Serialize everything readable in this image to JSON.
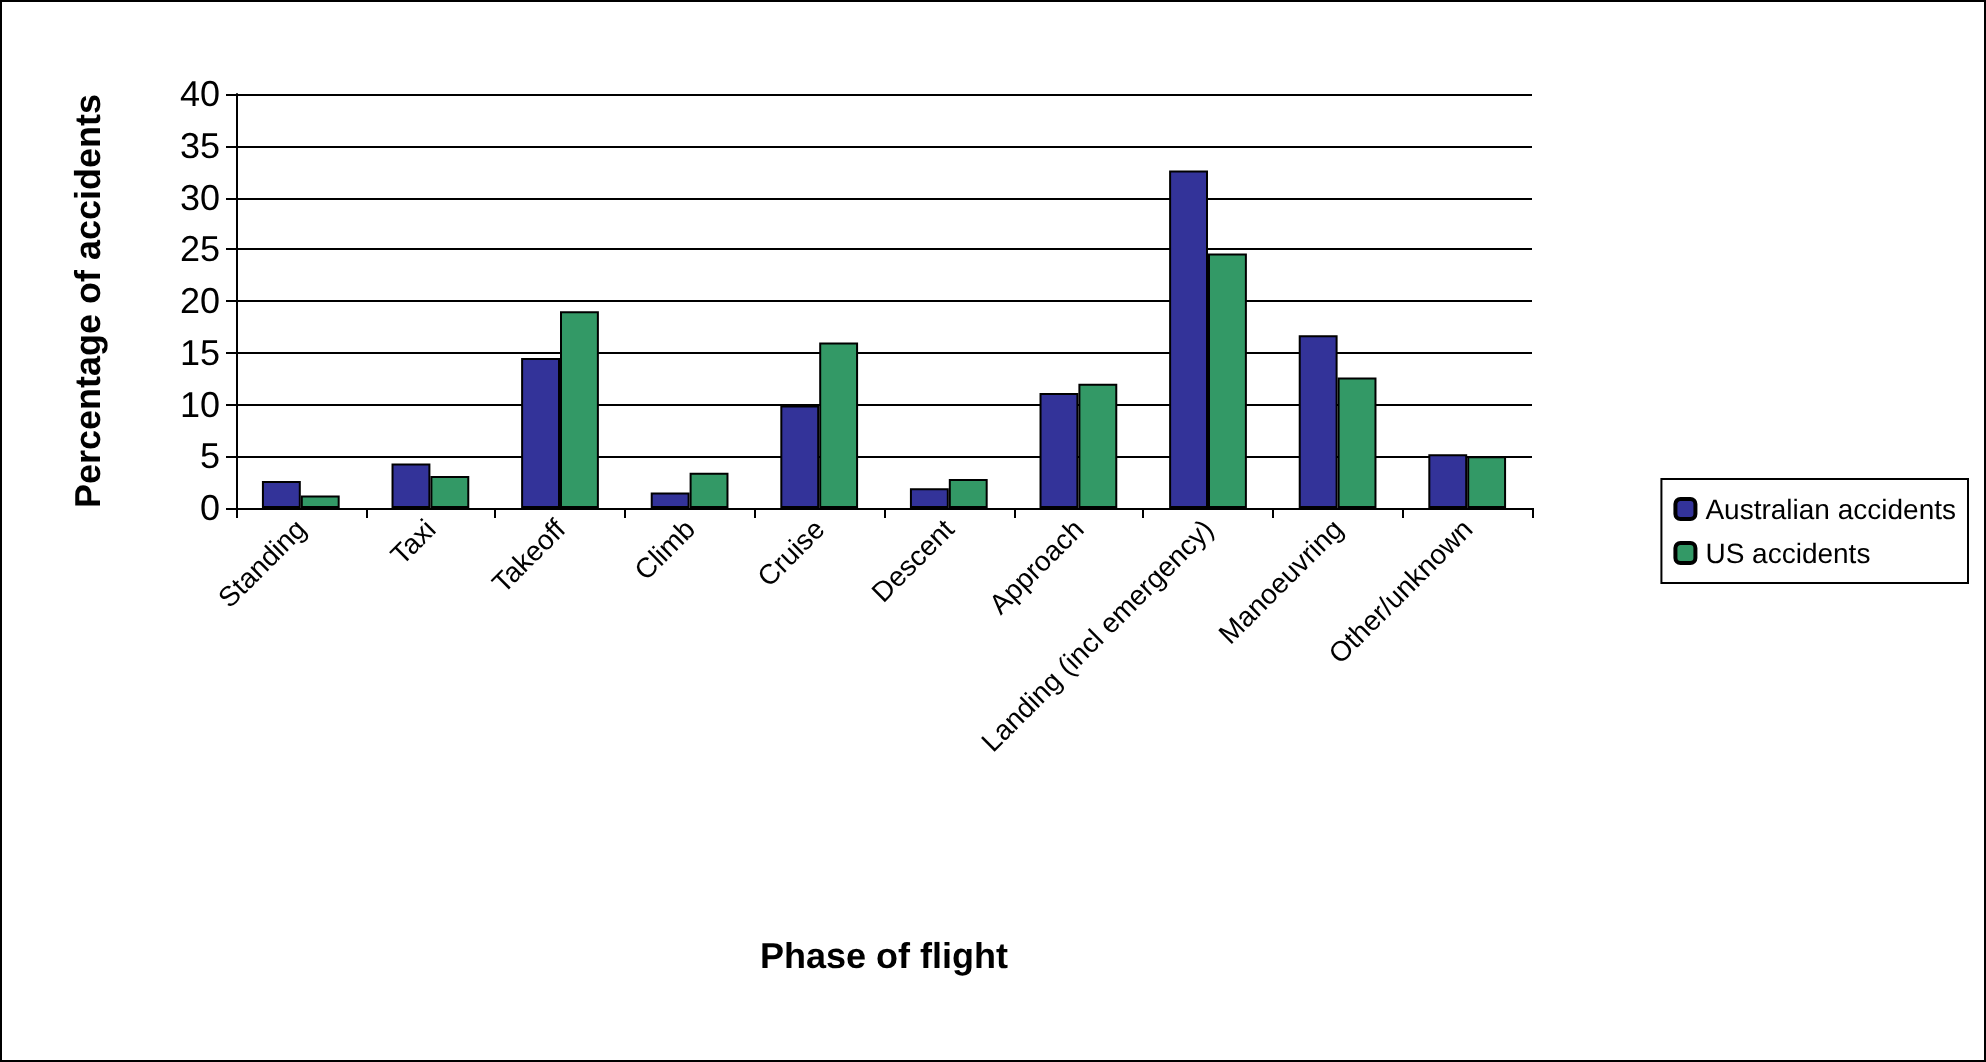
{
  "chart_data": {
    "type": "bar",
    "xlabel": "Phase of flight",
    "ylabel": "Percentage of accidents",
    "categories": [
      "Standing",
      "Taxi",
      "Takeoff",
      "Climb",
      "Cruise",
      "Descent",
      "Approach",
      "Landing (incl emergency)",
      "Manoeuvring",
      "Other/unknown"
    ],
    "series": [
      {
        "name": "Australian accidents",
        "color": "#333399",
        "values": [
          2.6,
          4.3,
          14.5,
          1.5,
          9.9,
          1.9,
          11.1,
          32.6,
          16.7,
          5.2
        ]
      },
      {
        "name": "US accidents",
        "color": "#339966",
        "values": [
          1.2,
          3.1,
          19.0,
          3.4,
          16.0,
          2.8,
          12.0,
          24.6,
          12.6,
          5.0
        ]
      }
    ],
    "ylim": [
      0,
      40
    ],
    "yticks": [
      0,
      5,
      10,
      15,
      20,
      25,
      30,
      35,
      40
    ],
    "grid": "y",
    "legend": "right"
  }
}
